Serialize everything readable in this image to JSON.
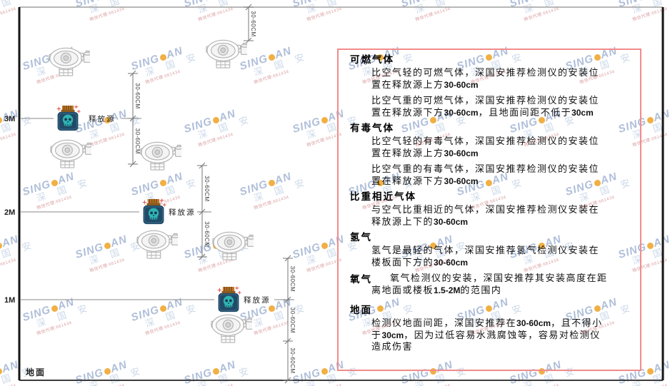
{
  "watermark": {
    "brand_prefix": "SING",
    "brand_suffix": "AN",
    "brand_cn": "深 国 安",
    "agent_line": "微信代理:661434"
  },
  "diagram": {
    "axis_labels": [
      "3M",
      "2M",
      "1M"
    ],
    "ground_label": "地面",
    "release_source_label": "释放源",
    "dimension_label": "30-60CM",
    "icons": {
      "detector": "gas-detector-icon",
      "release_source": "release-source-icon"
    },
    "colors": {
      "wall": "#151515",
      "line": "#808080",
      "source_body": "#214a66",
      "source_cap": "#c07a28",
      "source_skull": "#2fb3b3",
      "sparkle": "#e05050"
    }
  },
  "panel": {
    "border_color": "#f28b8b",
    "sections": [
      {
        "heading": "可燃气体",
        "paragraphs": [
          "比空气轻的可燃气体，深国安推荐检测仪的安装位置在释放源上方30-60cm",
          "比空气重的可燃气体，深国安推荐检测仪的安装位置在释放源下方30-60cm，且地面间距不低于30cm"
        ]
      },
      {
        "heading": "有毒气体",
        "paragraphs": [
          "比空气轻的有毒气体，深国安推荐检测仪的安装位置在释放源上方30-60cm",
          "比空气重的有毒气体，深国安推荐检测仪的安装位置在释放源下方30-60cm"
        ]
      },
      {
        "heading": "比重相近气体",
        "paragraphs": [
          "与空气比重相近的气体，深国安推荐检测仪安装在释放源上下的30-60cm"
        ]
      },
      {
        "heading": "氢气",
        "paragraphs": [
          "氢气是最轻的气体，深国安推荐氢气检测仪安装在楼板面下方的30-60cm"
        ]
      },
      {
        "heading": "氧气",
        "inline": true,
        "paragraphs": [
          "氧气检测仪的安装，深国安推荐其安装高度在距离地面或楼板1.5-2M的范围内"
        ]
      },
      {
        "heading": "地面",
        "extra_gap": true,
        "paragraphs": [
          "检测仪地面间距，深国安推荐在30-60cm，且不得小于30cm，因为过低容易水溅腐蚀等，容易对检测仪造成伤害"
        ]
      }
    ]
  }
}
